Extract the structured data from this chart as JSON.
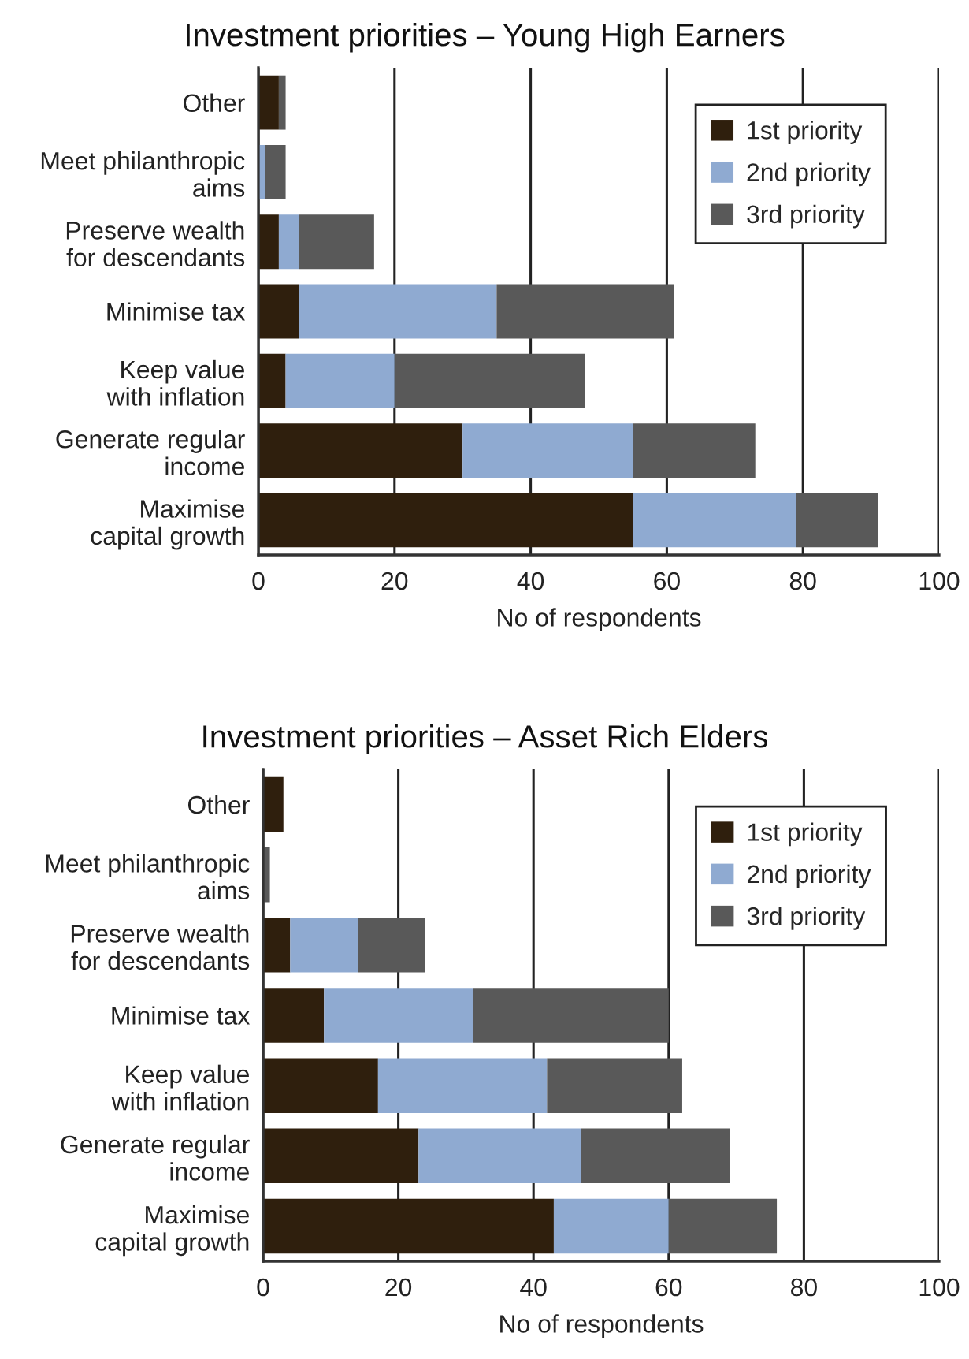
{
  "chart_data": [
    {
      "type": "bar",
      "orientation": "horizontal",
      "stacked": true,
      "title": "Investment priorities – Young High Earners",
      "xlabel": "No of respondents",
      "categories": [
        "Other",
        "Meet philanthropic\naims",
        "Preserve wealth\nfor descendants",
        "Minimise tax",
        "Keep value\nwith inflation",
        "Generate regular\nincome",
        "Maximise\ncapital growth"
      ],
      "series": [
        {
          "name": "1st priority",
          "color": "#2f1f0d",
          "values": [
            3,
            0,
            3,
            6,
            4,
            30,
            55
          ]
        },
        {
          "name": "2nd priority",
          "color": "#8faad1",
          "values": [
            0,
            1,
            3,
            29,
            16,
            25,
            24
          ]
        },
        {
          "name": "3rd priority",
          "color": "#595959",
          "values": [
            1,
            3,
            11,
            26,
            28,
            18,
            12
          ]
        }
      ],
      "xlim": [
        0,
        100
      ],
      "xticks": [
        0,
        20,
        40,
        60,
        80,
        100
      ],
      "grid": "x",
      "legend": "top right"
    },
    {
      "type": "bar",
      "orientation": "horizontal",
      "stacked": true,
      "title": "Investment priorities – Asset Rich Elders",
      "xlabel": "No of respondents",
      "categories": [
        "Other",
        "Meet philanthropic\naims",
        "Preserve wealth\nfor descendants",
        "Minimise tax",
        "Keep value\nwith inflation",
        "Generate regular\nincome",
        "Maximise\ncapital growth"
      ],
      "series": [
        {
          "name": "1st priority",
          "color": "#2f1f0d",
          "values": [
            3,
            0,
            4,
            9,
            17,
            23,
            43
          ]
        },
        {
          "name": "2nd priority",
          "color": "#8faad1",
          "values": [
            0,
            0,
            10,
            22,
            25,
            24,
            17
          ]
        },
        {
          "name": "3rd priority",
          "color": "#595959",
          "values": [
            0,
            1,
            10,
            29,
            20,
            22,
            16
          ]
        }
      ],
      "xlim": [
        0,
        100
      ],
      "xticks": [
        0,
        20,
        40,
        60,
        80,
        100
      ],
      "grid": "x",
      "legend": "top right"
    }
  ]
}
